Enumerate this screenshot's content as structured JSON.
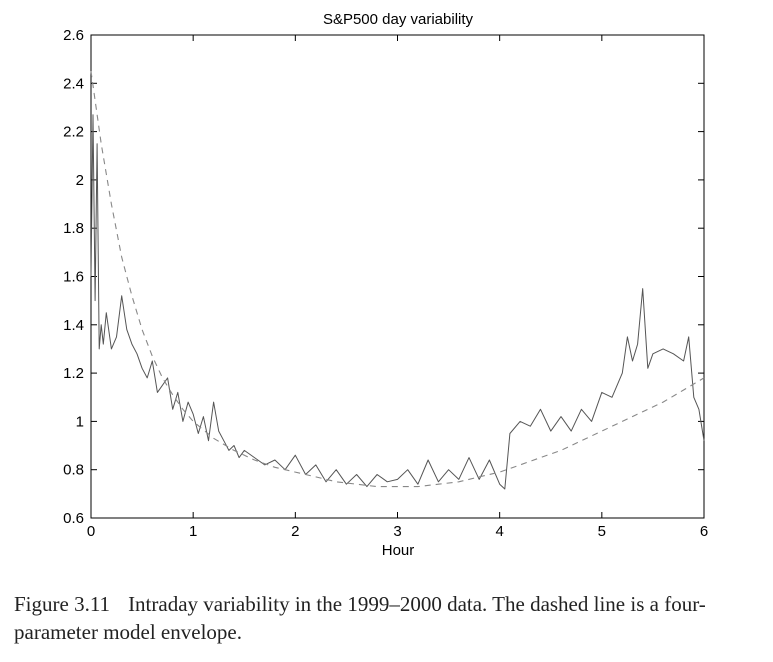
{
  "chart_data": {
    "type": "line",
    "title": "S&P500 day variability",
    "xlabel": "Hour",
    "ylabel": "",
    "xlim": [
      0,
      6
    ],
    "ylim": [
      0.6,
      2.6
    ],
    "xticks": [
      "0",
      "1",
      "2",
      "3",
      "4",
      "5",
      "6"
    ],
    "yticks": [
      "0.6",
      "0.8",
      "1",
      "1.2",
      "1.4",
      "1.6",
      "1.8",
      "2",
      "2.2",
      "2.4",
      "2.6"
    ],
    "grid": false,
    "legend": "none",
    "series": [
      {
        "style": "solid",
        "color": "#555555",
        "x": [
          0,
          0.02,
          0.04,
          0.06,
          0.08,
          0.1,
          0.12,
          0.15,
          0.2,
          0.25,
          0.3,
          0.35,
          0.4,
          0.45,
          0.5,
          0.55,
          0.6,
          0.65,
          0.7,
          0.75,
          0.8,
          0.85,
          0.9,
          0.95,
          1.0,
          1.05,
          1.1,
          1.15,
          1.2,
          1.25,
          1.3,
          1.35,
          1.4,
          1.45,
          1.5,
          1.6,
          1.7,
          1.8,
          1.9,
          2.0,
          2.1,
          2.2,
          2.3,
          2.4,
          2.5,
          2.6,
          2.7,
          2.8,
          2.9,
          3.0,
          3.1,
          3.2,
          3.3,
          3.4,
          3.5,
          3.6,
          3.7,
          3.8,
          3.9,
          4.0,
          4.05,
          4.1,
          4.2,
          4.3,
          4.4,
          4.5,
          4.6,
          4.7,
          4.8,
          4.9,
          5.0,
          5.1,
          5.2,
          5.25,
          5.3,
          5.35,
          5.4,
          5.45,
          5.5,
          5.6,
          5.7,
          5.8,
          5.85,
          5.9,
          5.95,
          6.0
        ],
        "y": [
          1.6,
          2.27,
          1.5,
          2.15,
          1.3,
          1.4,
          1.32,
          1.45,
          1.3,
          1.35,
          1.52,
          1.38,
          1.32,
          1.28,
          1.22,
          1.18,
          1.25,
          1.12,
          1.15,
          1.18,
          1.05,
          1.12,
          1.0,
          1.08,
          1.03,
          0.95,
          1.02,
          0.92,
          1.08,
          0.96,
          0.92,
          0.88,
          0.9,
          0.85,
          0.88,
          0.85,
          0.82,
          0.84,
          0.8,
          0.86,
          0.78,
          0.82,
          0.75,
          0.8,
          0.74,
          0.78,
          0.73,
          0.78,
          0.75,
          0.76,
          0.8,
          0.74,
          0.84,
          0.75,
          0.8,
          0.76,
          0.85,
          0.76,
          0.84,
          0.74,
          0.72,
          0.95,
          1.0,
          0.98,
          1.05,
          0.96,
          1.02,
          0.96,
          1.05,
          1.0,
          1.12,
          1.1,
          1.2,
          1.35,
          1.25,
          1.32,
          1.55,
          1.22,
          1.28,
          1.3,
          1.28,
          1.25,
          1.35,
          1.1,
          1.05,
          0.92
        ]
      },
      {
        "style": "dashed",
        "color": "#888888",
        "x": [
          0,
          0.1,
          0.2,
          0.3,
          0.4,
          0.5,
          0.6,
          0.7,
          0.8,
          0.9,
          1.0,
          1.2,
          1.4,
          1.6,
          1.8,
          2.0,
          2.2,
          2.4,
          2.6,
          2.8,
          3.0,
          3.2,
          3.4,
          3.6,
          3.8,
          4.0,
          4.2,
          4.4,
          4.6,
          4.8,
          5.0,
          5.2,
          5.4,
          5.6,
          5.8,
          6.0
        ],
        "y": [
          2.45,
          2.15,
          1.9,
          1.68,
          1.52,
          1.38,
          1.27,
          1.18,
          1.11,
          1.05,
          1.0,
          0.93,
          0.88,
          0.84,
          0.81,
          0.79,
          0.77,
          0.75,
          0.74,
          0.73,
          0.73,
          0.73,
          0.74,
          0.75,
          0.77,
          0.79,
          0.82,
          0.85,
          0.88,
          0.92,
          0.96,
          1.0,
          1.04,
          1.08,
          1.13,
          1.18
        ]
      }
    ]
  },
  "caption": {
    "figure_number": "Figure 3.11",
    "text": "Intraday variability in the 1999–2000 data. The dashed line is a four-parameter model envelope."
  }
}
